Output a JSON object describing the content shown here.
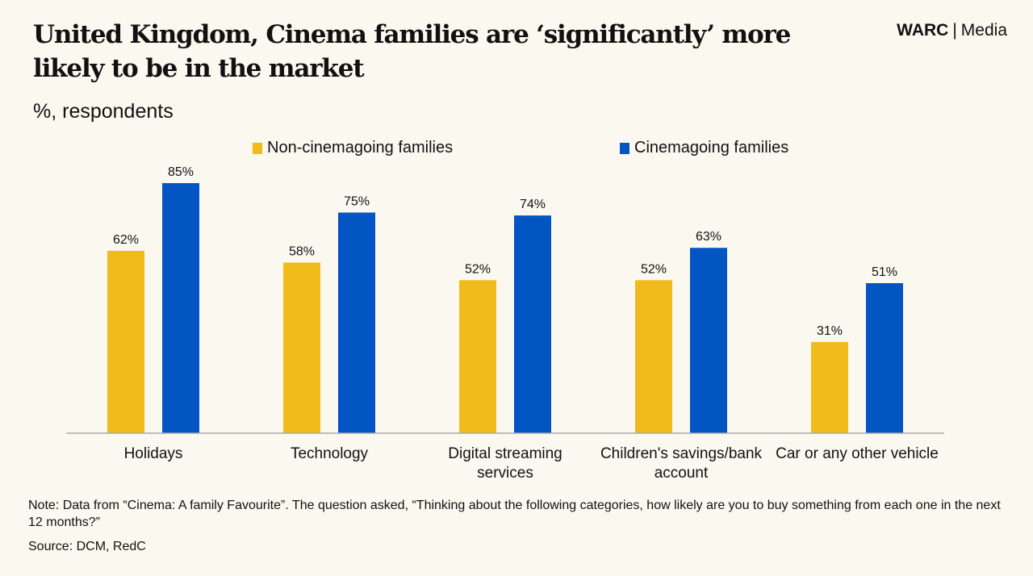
{
  "header": {
    "title": "United Kingdom, Cinema families are ‘significantly’ more likely to be in the market",
    "logo_brand": "WARC",
    "logo_separator": "|",
    "logo_section": "Media",
    "subtitle": "%, respondents"
  },
  "colors": {
    "non_cinema": "#f2bb1c",
    "cinema": "#0355c4",
    "axis": "#aaaaaa"
  },
  "chart_data": {
    "type": "bar",
    "title": "United Kingdom, Cinema families are ‘significantly’ more likely to be in the market",
    "ylabel": "%, respondents",
    "xlabel": "",
    "ylim": [
      0,
      85
    ],
    "grid": false,
    "legend_position": "top",
    "categories": [
      [
        "Holidays"
      ],
      [
        "Technology"
      ],
      [
        "Digital streaming",
        "services"
      ],
      [
        "Children's savings/bank",
        "account"
      ],
      [
        "Car or any other vehicle"
      ]
    ],
    "series": [
      {
        "name": "Non-cinemagoing families",
        "values": [
          62,
          58,
          52,
          52,
          31
        ],
        "labels": [
          "62%",
          "58%",
          "52%",
          "52%",
          "31%"
        ]
      },
      {
        "name": "Cinemagoing families",
        "values": [
          85,
          75,
          74,
          63,
          51
        ],
        "labels": [
          "85%",
          "75%",
          "74%",
          "63%",
          "51%"
        ]
      }
    ]
  },
  "footer": {
    "note": "Note: Data from “Cinema: A family Favourite”. The question asked, “Thinking about the following categories, how likely are you to buy something from each one in the next 12 months?”",
    "source": "Source: DCM, RedC"
  }
}
